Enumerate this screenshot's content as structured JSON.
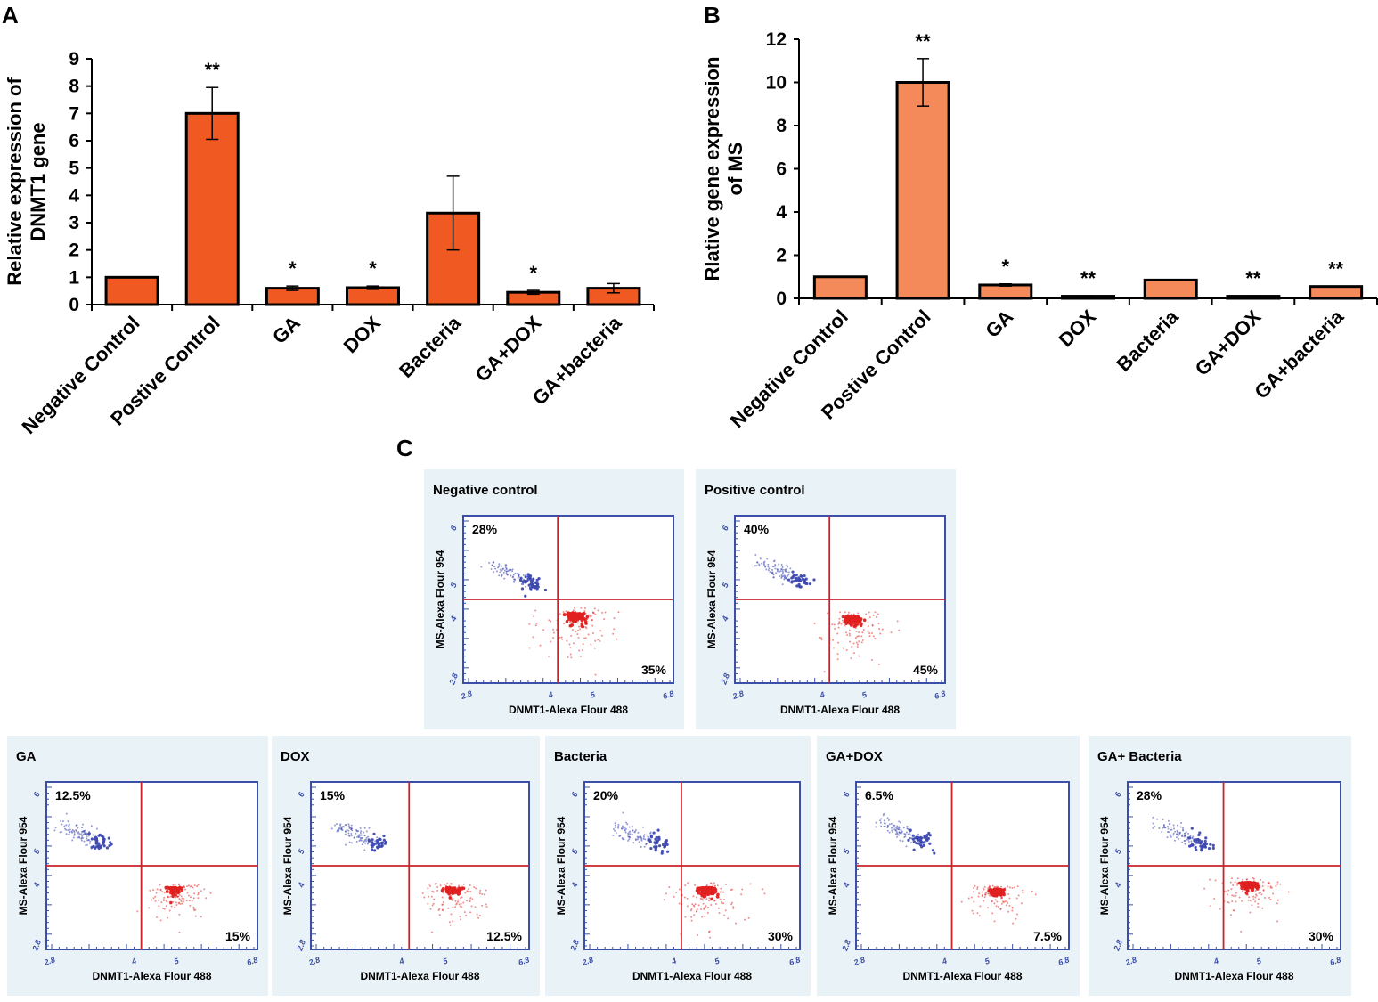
{
  "chart_data": [
    {
      "panel": "A",
      "type": "bar",
      "categories": [
        "Negative Control",
        "Postive Control",
        "GA",
        "DOX",
        "Bacteria",
        "GA+DOX",
        "GA+bacteria"
      ],
      "values": [
        1,
        7,
        0.6,
        0.62,
        3.35,
        0.45,
        0.6
      ],
      "errors": [
        0,
        0.95,
        0.08,
        0.06,
        1.35,
        0.07,
        0.17
      ],
      "significance": [
        "",
        "**",
        "*",
        "*",
        "",
        "*",
        ""
      ],
      "ylabel_lines": [
        "Relative expression of",
        "DNMT1 gene"
      ],
      "ylim": [
        0,
        9
      ],
      "yticks": [
        0,
        1,
        2,
        3,
        4,
        5,
        6,
        7,
        8,
        9
      ],
      "bar_color": "#f05a22"
    },
    {
      "panel": "B",
      "type": "bar",
      "categories": [
        "Negative Control",
        "Postive Control",
        "GA",
        "DOX",
        "Bacteria",
        "GA+DOX",
        "GA+bacteria"
      ],
      "values": [
        1,
        10,
        0.62,
        0.1,
        0.85,
        0.1,
        0.55
      ],
      "errors": [
        0,
        1.1,
        0.05,
        0.02,
        0,
        0.02,
        0
      ],
      "significance": [
        "",
        "**",
        "*",
        "**",
        "",
        "**",
        "**"
      ],
      "ylabel_lines": [
        "Rlative gene expression",
        "of MS"
      ],
      "ylim": [
        0,
        12
      ],
      "yticks": [
        0,
        2,
        4,
        6,
        8,
        10,
        12
      ],
      "bar_color": "#f4895a"
    },
    {
      "panel": "C",
      "type": "scatter",
      "xlabel": "DNMT1-Alexa Flour 488",
      "ylabel": "MS-Alexa Flour 954",
      "x_ticks": [
        "2.8",
        "4",
        "5",
        "6.8"
      ],
      "y_ticks": [
        "2.8",
        "4",
        "5",
        "6"
      ],
      "plots": [
        {
          "title": "Negative control",
          "upper_left": "28%",
          "lower_right": "35%"
        },
        {
          "title": "Positive control",
          "upper_left": "40%",
          "lower_right": "45%"
        },
        {
          "title": "GA",
          "upper_left": "12.5%",
          "lower_right": "15%"
        },
        {
          "title": "DOX",
          "upper_left": "15%",
          "lower_right": "12.5%"
        },
        {
          "title": "Bacteria",
          "upper_left": "20%",
          "lower_right": "30%"
        },
        {
          "title": "GA+DOX",
          "upper_left": "6.5%",
          "lower_right": "7.5%"
        },
        {
          "title": "GA+ Bacteria",
          "upper_left": "28%",
          "lower_right": "30%"
        }
      ],
      "blue_color": "#3d49b0",
      "red_color": "#e02020",
      "frame_color": "#3b4fa8",
      "quadrant_line_color": "#c8232a",
      "panel_bg": "#e9f2f7"
    }
  ],
  "panel_letters": {
    "a": "A",
    "b": "B",
    "c": "C"
  }
}
